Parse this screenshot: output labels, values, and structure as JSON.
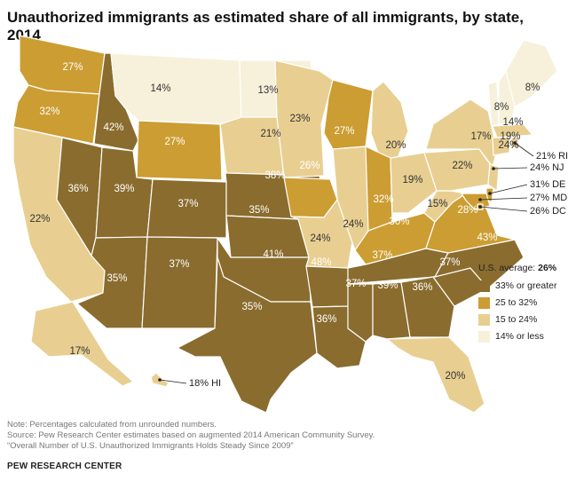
{
  "title": "Unauthorized immigrants as estimated share of all immigrants, by state, 2014",
  "legend": {
    "average_label": "U.S. average:",
    "average_value": "26%",
    "items": [
      {
        "label": "33% or greater",
        "color": "#8a6c2e"
      },
      {
        "label": "25 to 32%",
        "color": "#cc9d32"
      },
      {
        "label": "15 to 24%",
        "color": "#e8cf91"
      },
      {
        "label": "14% or less",
        "color": "#f7f0da"
      }
    ]
  },
  "states": [
    {
      "code": "WA",
      "value": "27%"
    },
    {
      "code": "OR",
      "value": "32%"
    },
    {
      "code": "CA",
      "value": "22%"
    },
    {
      "code": "NV",
      "value": "36%"
    },
    {
      "code": "ID",
      "value": "42%"
    },
    {
      "code": "MT",
      "value": "14%"
    },
    {
      "code": "WY",
      "value": "27%"
    },
    {
      "code": "UT",
      "value": "39%"
    },
    {
      "code": "AZ",
      "value": "35%"
    },
    {
      "code": "CO",
      "value": "37%"
    },
    {
      "code": "NM",
      "value": "37%"
    },
    {
      "code": "ND",
      "value": "13%"
    },
    {
      "code": "SD",
      "value": "21%"
    },
    {
      "code": "NE",
      "value": "38%"
    },
    {
      "code": "KS",
      "value": "35%"
    },
    {
      "code": "OK",
      "value": "41%"
    },
    {
      "code": "TX",
      "value": "35%"
    },
    {
      "code": "MN",
      "value": "23%"
    },
    {
      "code": "IA",
      "value": "26%"
    },
    {
      "code": "MO",
      "value": "24%"
    },
    {
      "code": "AR",
      "value": "48%"
    },
    {
      "code": "LA",
      "value": "36%"
    },
    {
      "code": "WI",
      "value": "27%"
    },
    {
      "code": "IL",
      "value": "24%"
    },
    {
      "code": "MI",
      "value": "20%"
    },
    {
      "code": "IN",
      "value": "32%"
    },
    {
      "code": "OH",
      "value": "19%"
    },
    {
      "code": "KY",
      "value": "30%"
    },
    {
      "code": "TN",
      "value": "37%"
    },
    {
      "code": "MS",
      "value": "37%"
    },
    {
      "code": "AL",
      "value": "39%"
    },
    {
      "code": "GA",
      "value": "36%"
    },
    {
      "code": "FL",
      "value": "20%"
    },
    {
      "code": "SC",
      "value": "37%"
    },
    {
      "code": "NC",
      "value": "43%"
    },
    {
      "code": "VA",
      "value": "28%"
    },
    {
      "code": "WV",
      "value": "15%"
    },
    {
      "code": "PA",
      "value": "22%"
    },
    {
      "code": "NY",
      "value": "17%"
    },
    {
      "code": "VT",
      "value": "8%"
    },
    {
      "code": "NH",
      "value": "14%"
    },
    {
      "code": "ME",
      "value": "8%"
    },
    {
      "code": "MA",
      "value": "19%"
    },
    {
      "code": "CT",
      "value": "24%"
    },
    {
      "code": "AK",
      "value": "17%"
    }
  ],
  "callouts": [
    {
      "code": "RI",
      "text": "21% RI"
    },
    {
      "code": "NJ",
      "text": "24% NJ"
    },
    {
      "code": "DE",
      "text": "31% DE"
    },
    {
      "code": "MD",
      "text": "27% MD"
    },
    {
      "code": "DC",
      "text": "26% DC"
    },
    {
      "code": "HI",
      "text": "18% HI"
    }
  ],
  "footer": {
    "note": "Note: Percentages calculated from unrounded numbers.",
    "source": "Source: Pew Research Center estimates based on augmented 2014 American Community Survey.",
    "report": "“Overall Number of U.S. Unauthorized Immigrants Holds Steady Since 2009”",
    "org": "PEW RESEARCH CENTER"
  }
}
